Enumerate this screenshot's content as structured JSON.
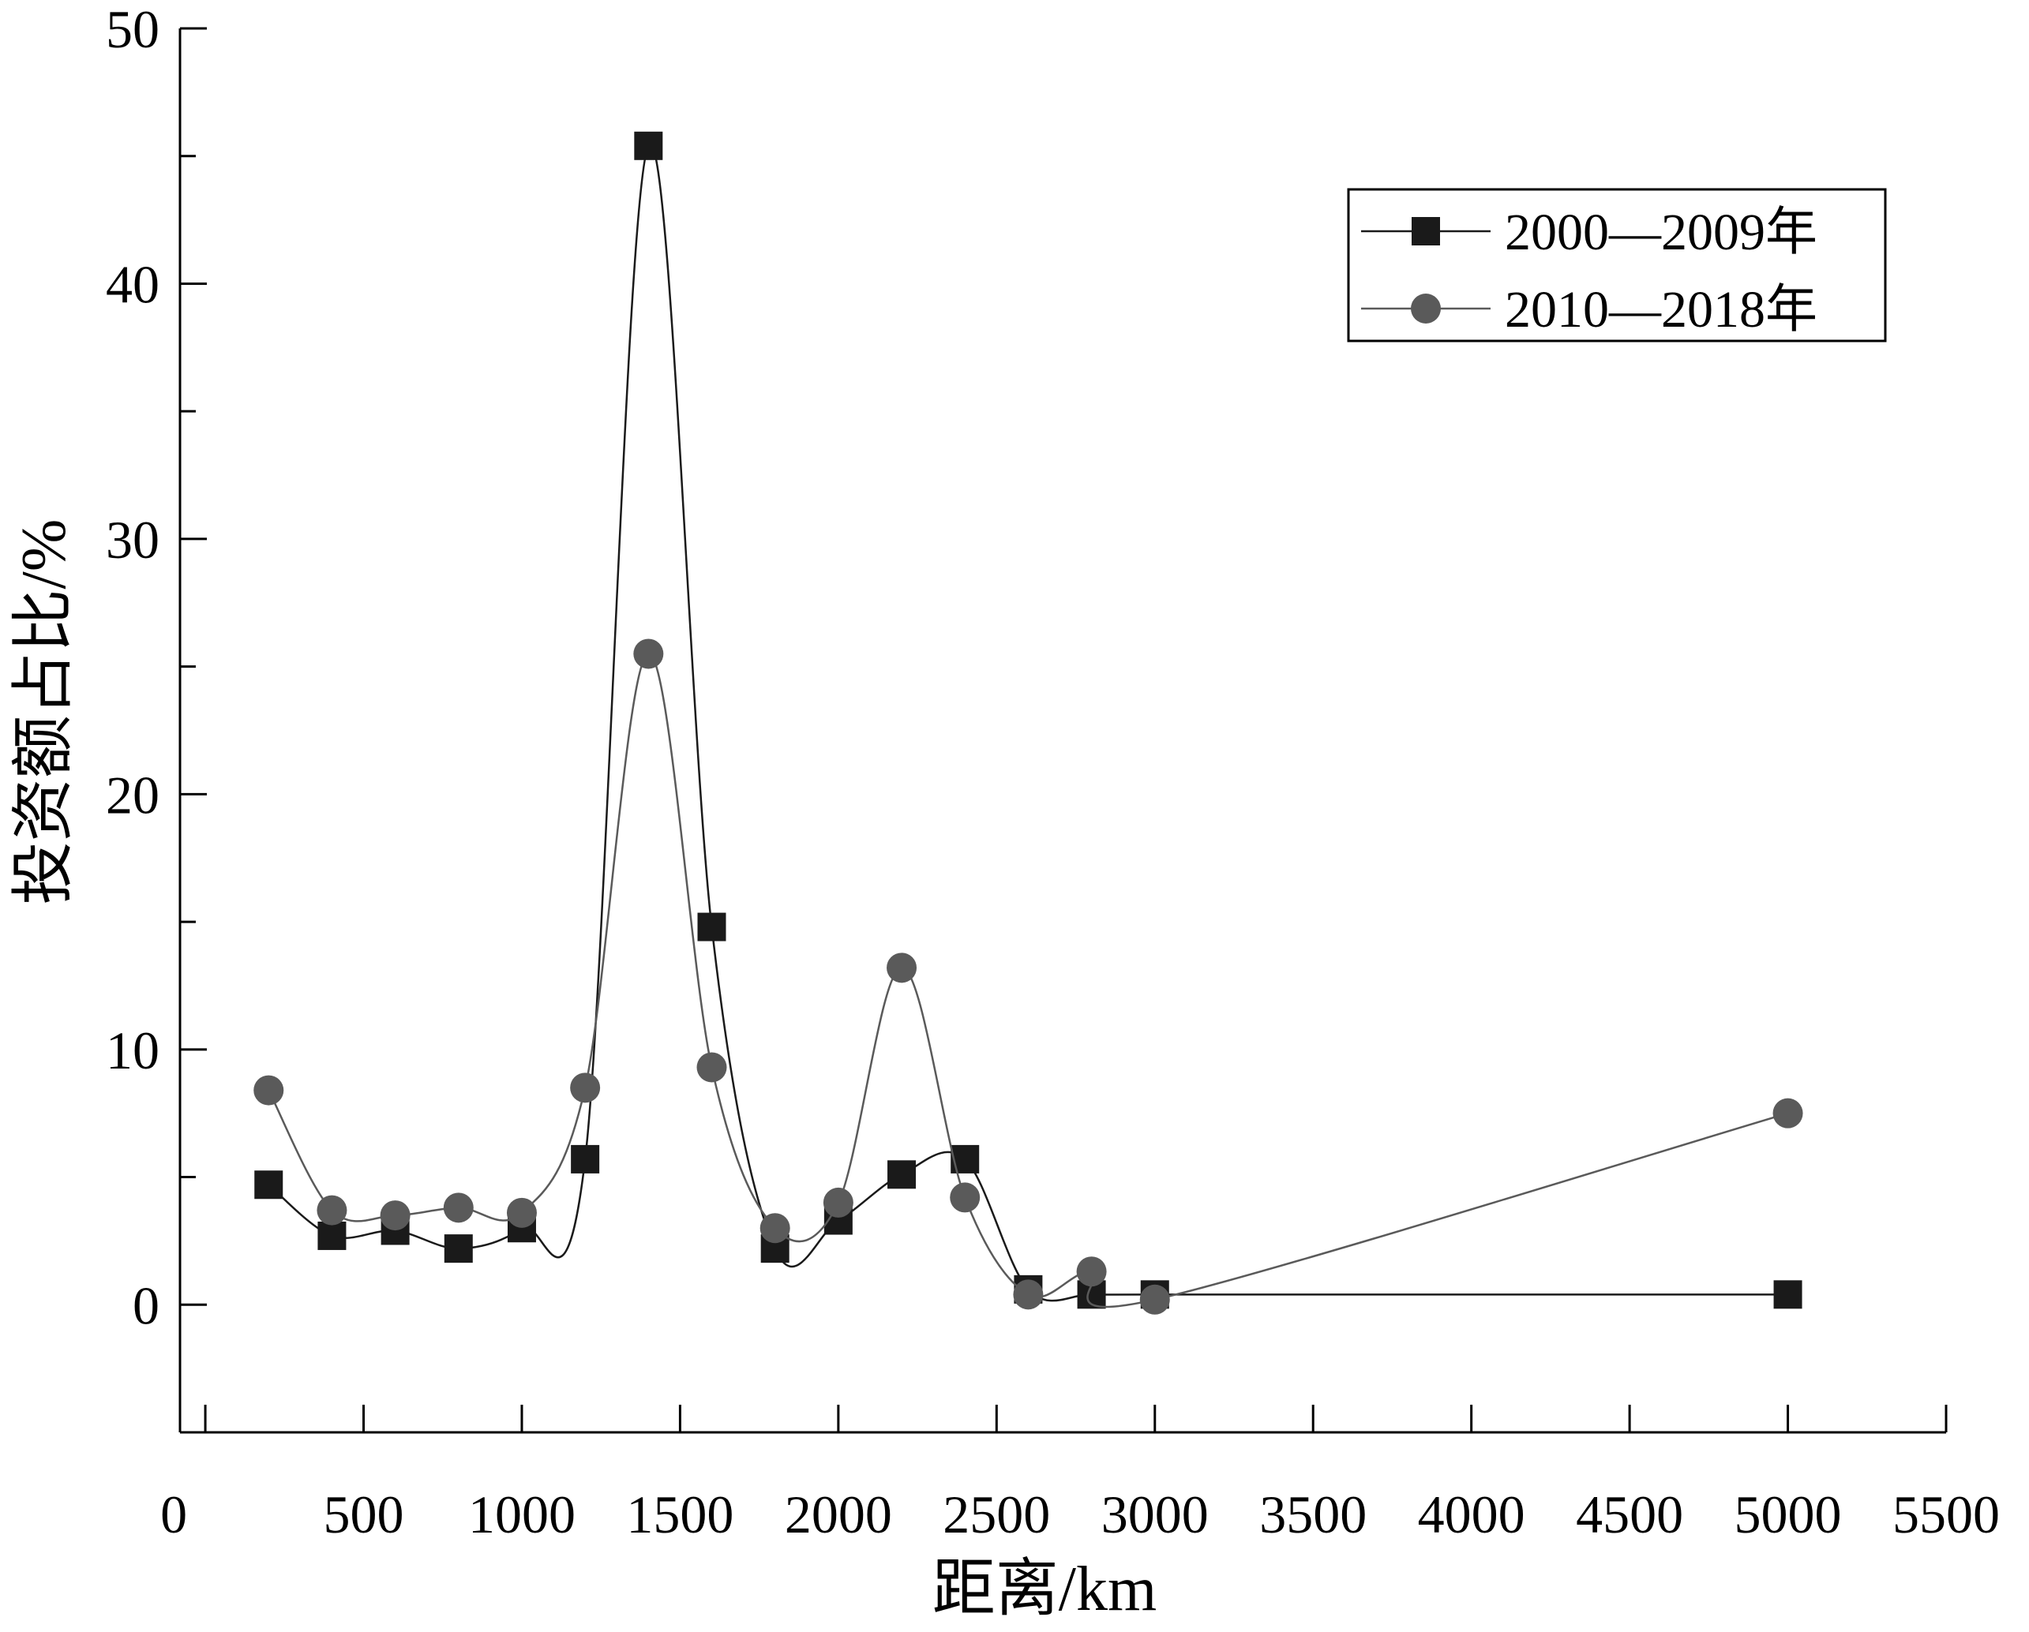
{
  "chart_data": {
    "type": "line",
    "xlabel": "距离/km",
    "ylabel": "投资额占比/%",
    "xlim": [
      -80,
      5500
    ],
    "ylim": [
      -5,
      50
    ],
    "x_ticks": [
      "0",
      "500",
      "1000",
      "1500",
      "2000",
      "2500",
      "3000",
      "3500",
      "4000",
      "4500",
      "5000",
      "5500"
    ],
    "x_tick_values": [
      0,
      500,
      1000,
      1500,
      2000,
      2500,
      3000,
      3500,
      4000,
      4500,
      5000,
      5500
    ],
    "y_ticks": [
      "0",
      "10",
      "20",
      "30",
      "40",
      "50"
    ],
    "y_tick_values": [
      0,
      10,
      20,
      30,
      40,
      50
    ],
    "grid": false,
    "legend_position": "top-right",
    "series": [
      {
        "name": "2000—2009年",
        "marker": "square",
        "color": "#1a1a1a",
        "x": [
          200,
          400,
          600,
          800,
          1000,
          1200,
          1400,
          1600,
          1800,
          2000,
          2200,
          2400,
          2600,
          2800,
          3000,
          5000
        ],
        "values": [
          4.7,
          2.7,
          2.9,
          2.2,
          3.0,
          5.7,
          45.4,
          14.8,
          2.2,
          3.3,
          5.1,
          5.7,
          0.6,
          0.4,
          0.4,
          0.4
        ]
      },
      {
        "name": "2010—2018年",
        "marker": "circle",
        "color": "#5a5a5a",
        "x": [
          200,
          400,
          600,
          800,
          1000,
          1200,
          1400,
          1600,
          1800,
          2000,
          2200,
          2400,
          2600,
          2800,
          3000,
          5000
        ],
        "values": [
          8.4,
          3.7,
          3.5,
          3.8,
          3.6,
          8.5,
          25.5,
          9.3,
          3.0,
          4.0,
          13.2,
          4.2,
          0.4,
          1.3,
          0.2,
          7.5
        ]
      }
    ]
  }
}
